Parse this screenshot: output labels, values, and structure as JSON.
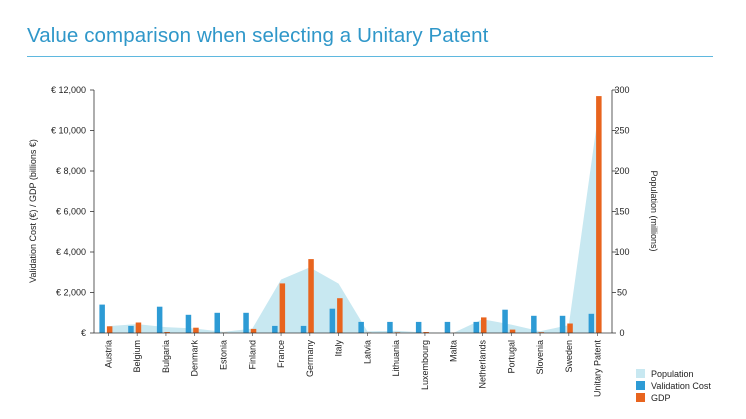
{
  "header": {
    "title": "Value comparison when selecting a Unitary Patent"
  },
  "chart_data": {
    "type": "bar",
    "title": "Value comparison when selecting a Unitary Patent",
    "categories": [
      "Austria",
      "Belgium",
      "Bulgaria",
      "Denmark",
      "Estonia",
      "Finland",
      "France",
      "Germany",
      "Italy",
      "Latvia",
      "Lithuania",
      "Luxembourg",
      "Malta",
      "Netherlands",
      "Portugal",
      "Slovenia",
      "Sweden",
      "Unitary Patent"
    ],
    "series": [
      {
        "name": "Population",
        "type": "area",
        "axis": "right",
        "color": "#c8e8f1",
        "values": [
          8.5,
          11,
          7.3,
          5.6,
          1.3,
          5.4,
          66,
          81,
          61,
          2,
          2.9,
          0.6,
          0.4,
          17,
          10.4,
          2.1,
          9.7,
          265
        ]
      },
      {
        "name": "Validation Cost",
        "type": "bar",
        "axis": "left",
        "color": "#2d9bd5",
        "values": [
          1400,
          350,
          1300,
          900,
          1000,
          1000,
          350,
          350,
          1200,
          550,
          550,
          550,
          550,
          550,
          1150,
          850,
          850,
          950
        ]
      },
      {
        "name": "GDP",
        "type": "bar",
        "axis": "left",
        "color": "#e8641e",
        "values": [
          330,
          520,
          50,
          260,
          20,
          200,
          2450,
          3650,
          1720,
          20,
          35,
          50,
          10,
          770,
          170,
          40,
          470,
          11700
        ]
      }
    ],
    "left_axis": {
      "label": "Validation Cost (€) / GDP (billions €)",
      "ylim": [
        0,
        12000
      ],
      "ticks": [
        "€ 12,000",
        "€ 10,000",
        "€ 8,000",
        "€ 6,000",
        "€ 4,000",
        "€ 2,000",
        "€"
      ],
      "tick_values": [
        12000,
        10000,
        8000,
        6000,
        4000,
        2000,
        0
      ]
    },
    "right_axis": {
      "label": "Population (millions)",
      "ylim": [
        0,
        300
      ],
      "ticks": [
        "300",
        "250",
        "200",
        "150",
        "100",
        "50",
        "0"
      ],
      "tick_values": [
        300,
        250,
        200,
        150,
        100,
        50,
        0
      ]
    },
    "legend_position": "bottom-right",
    "grid": false
  }
}
